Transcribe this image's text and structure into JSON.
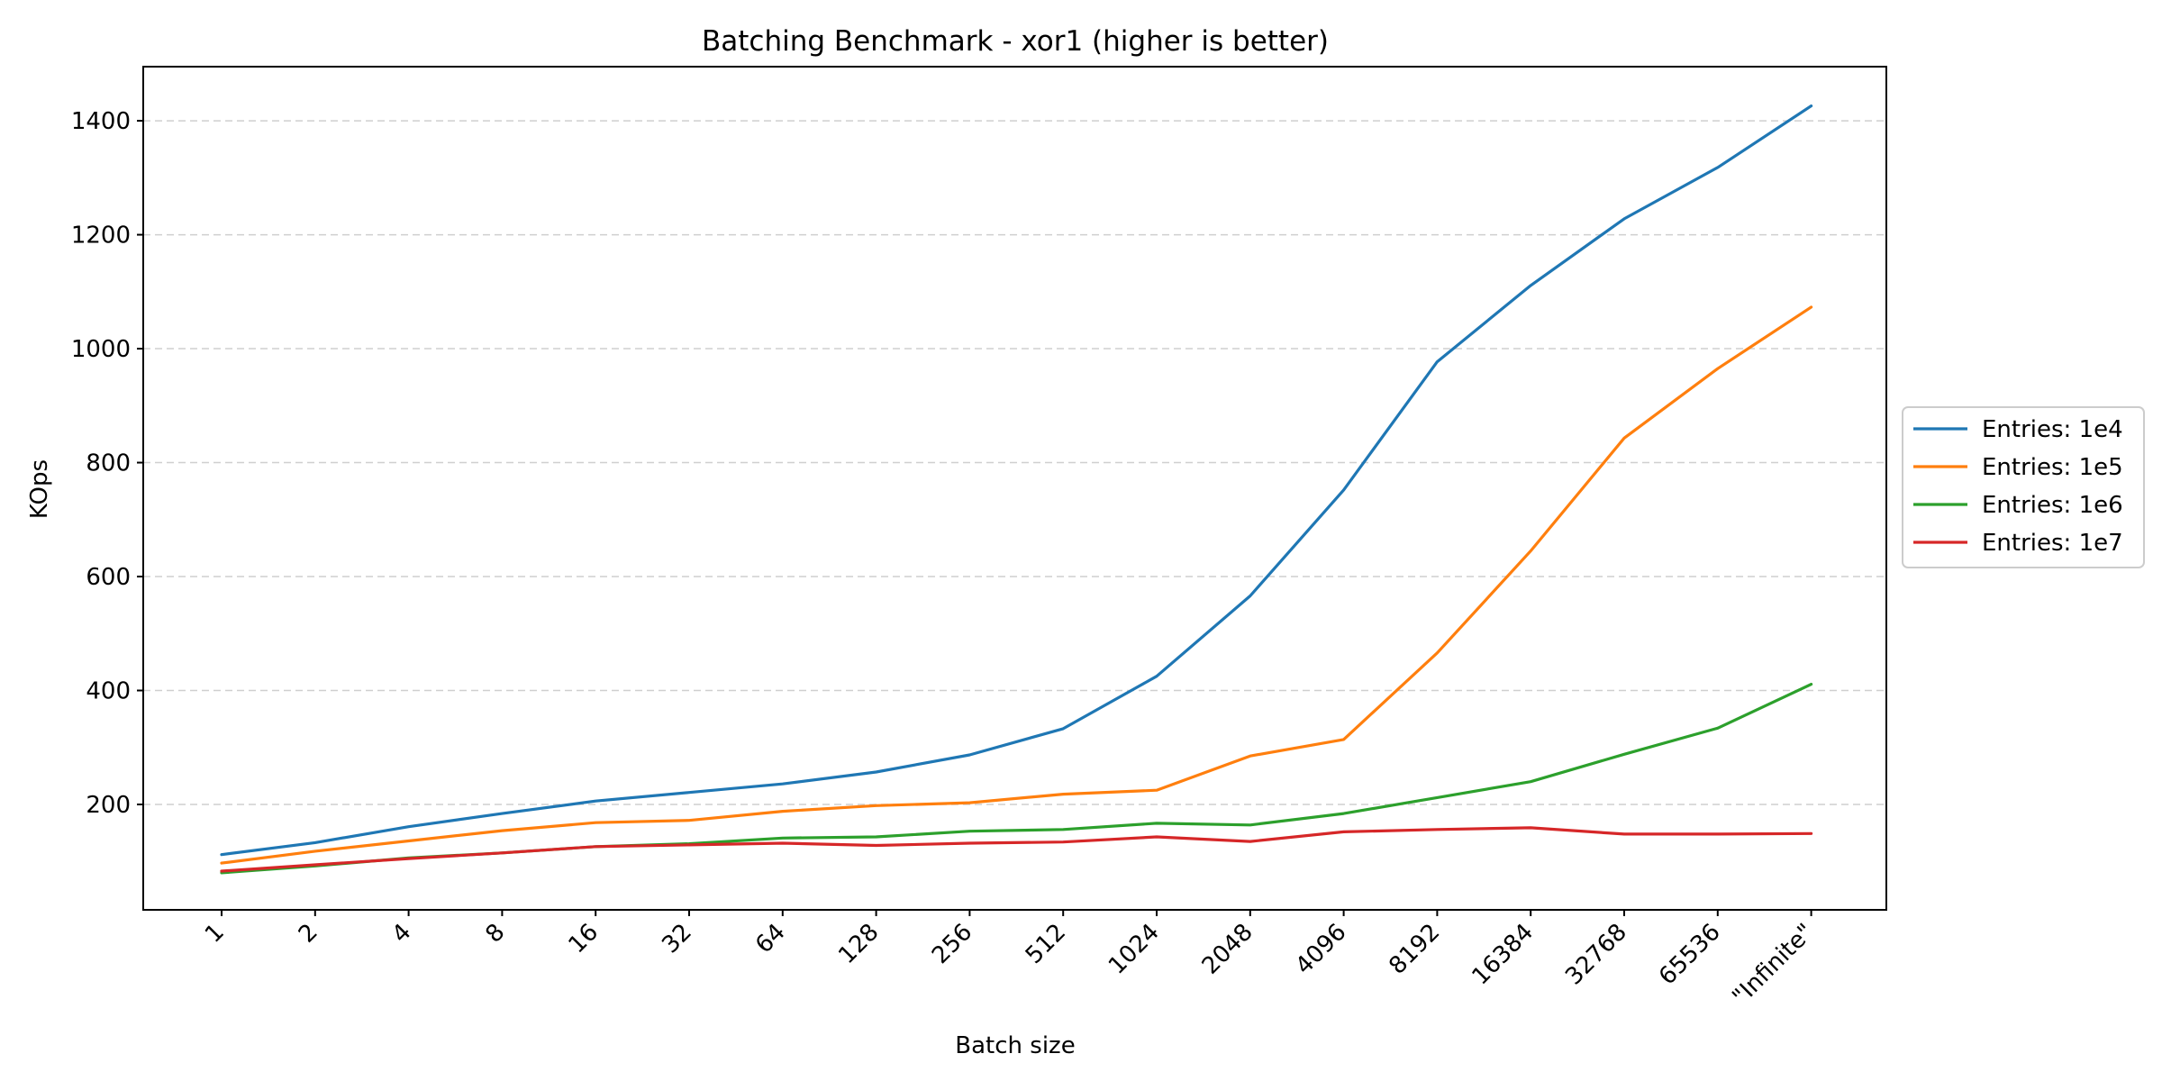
{
  "chart_data": {
    "type": "line",
    "title": "Batching Benchmark - xor1 (higher is better)",
    "xlabel": "Batch size",
    "ylabel": "KOps",
    "categories": [
      "1",
      "2",
      "4",
      "8",
      "16",
      "32",
      "64",
      "128",
      "256",
      "512",
      "1024",
      "2048",
      "4096",
      "8192",
      "16384",
      "32768",
      "65536",
      "\"Infinite\""
    ],
    "ylim": [
      15,
      1495
    ],
    "yticks": [
      200,
      400,
      600,
      800,
      1000,
      1200,
      1400
    ],
    "grid": "y-dashed",
    "legend_position": "right-center",
    "series": [
      {
        "name": "Entries: 1e4",
        "color": "#1f77b4",
        "values": [
          112,
          133,
          161,
          184,
          206,
          221,
          236,
          257,
          287,
          333,
          425,
          566,
          752,
          977,
          1111,
          1228,
          1318,
          1426
        ]
      },
      {
        "name": "Entries: 1e5",
        "color": "#ff7f0e",
        "values": [
          97,
          118,
          136,
          154,
          168,
          172,
          188,
          198,
          203,
          218,
          225,
          285,
          314,
          466,
          645,
          843,
          965,
          1073
        ]
      },
      {
        "name": "Entries: 1e6",
        "color": "#2ca02c",
        "values": [
          80,
          92,
          106,
          115,
          126,
          131,
          141,
          143,
          153,
          156,
          167,
          164,
          184,
          212,
          240,
          288,
          334,
          411
        ]
      },
      {
        "name": "Entries: 1e7",
        "color": "#d62728",
        "values": [
          83,
          94,
          105,
          115,
          126,
          129,
          132,
          128,
          132,
          134,
          143,
          135,
          152,
          156,
          159,
          148,
          148,
          149
        ]
      }
    ]
  }
}
